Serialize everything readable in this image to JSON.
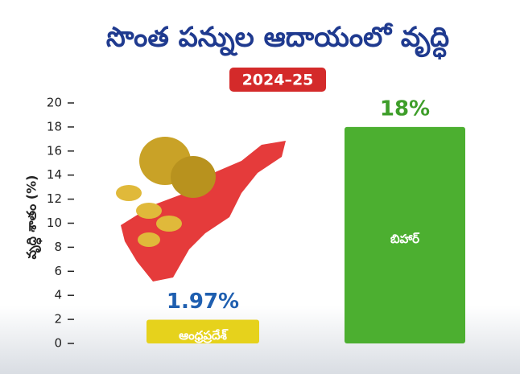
{
  "chart_data": {
    "type": "bar",
    "title": "సొంత పన్నుల ఆదాయంలో వృద్ధి",
    "subtitle": "2024–25",
    "y_label": "వృద్ధి శాతం (%)",
    "categories": [
      "ఆంధ్రప్రదేశ్",
      "బిహార్"
    ],
    "values": [
      1.97,
      18
    ],
    "value_labels": [
      "1.97%",
      "18%"
    ],
    "colors": [
      "#e6d21c",
      "#4caf30"
    ],
    "ylim": [
      0,
      20
    ],
    "yticks": [
      0,
      2,
      4,
      6,
      8,
      10,
      12,
      14,
      16,
      18,
      20
    ],
    "grid": false
  }
}
